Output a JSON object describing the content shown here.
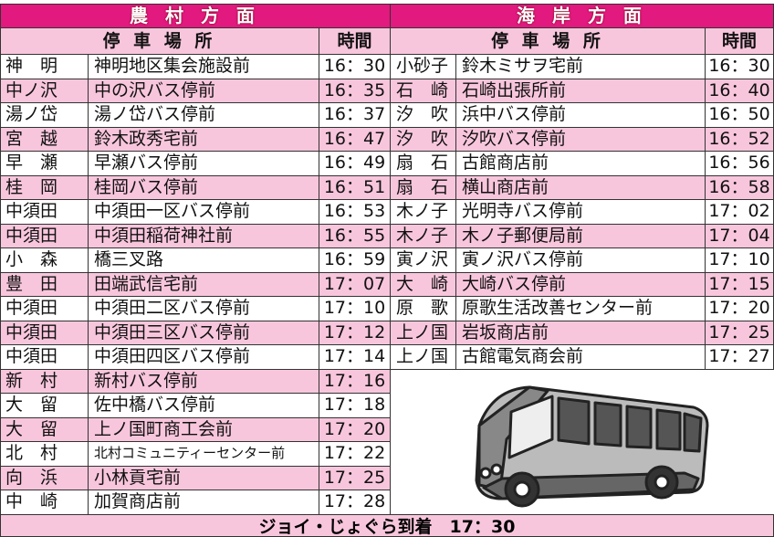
{
  "left": {
    "title": "農 村 方 面",
    "header": {
      "stop": "停 車 場 所",
      "time": "時間"
    },
    "rows": [
      [
        "神　明",
        "神明地区集会施設前",
        "16：30"
      ],
      [
        "中ノ沢",
        "中の沢バス停前",
        "16：35"
      ],
      [
        "湯ノ岱",
        "湯ノ岱バス停前",
        "16：37"
      ],
      [
        "宮　越",
        "鈴木政秀宅前",
        "16：47"
      ],
      [
        "早　瀬",
        "早瀬バス停前",
        "16：49"
      ],
      [
        "桂　岡",
        "桂岡バス停前",
        "16：51"
      ],
      [
        "中須田",
        "中須田一区バス停前",
        "16：53"
      ],
      [
        "中須田",
        "中須田稲荷神社前",
        "16：55"
      ],
      [
        "小　森",
        "橋三叉路",
        "16：59"
      ],
      [
        "豊　田",
        "田端武信宅前",
        "17：07"
      ],
      [
        "中須田",
        "中須田二区バス停前",
        "17：10"
      ],
      [
        "中須田",
        "中須田三区バス停前",
        "17：12"
      ],
      [
        "中須田",
        "中須田四区バス停前",
        "17：14"
      ],
      [
        "新　村",
        "新村バス停前",
        "17：16"
      ],
      [
        "大　留",
        "佐中橋バス停前",
        "17：18"
      ],
      [
        "大　留",
        "上ノ国町商工会前",
        "17：20"
      ],
      [
        "北　村",
        "北村コミュニティーセンター前",
        "17：22"
      ],
      [
        "向　浜",
        "小林貢宅前",
        "17：25"
      ],
      [
        "中　崎",
        "加賀商店前",
        "17：28"
      ]
    ]
  },
  "right": {
    "title": "海 岸 方 面",
    "header": {
      "stop": "停 車 場 所",
      "time": "時間"
    },
    "rows": [
      [
        "小砂子",
        "鈴木ミサヲ宅前",
        "16：30"
      ],
      [
        "石　崎",
        "石崎出張所前",
        "16：40"
      ],
      [
        "汐　吹",
        "浜中バス停前",
        "16：50"
      ],
      [
        "汐　吹",
        "汐吹バス停前",
        "16：52"
      ],
      [
        "扇　石",
        "古館商店前",
        "16：56"
      ],
      [
        "扇　石",
        "横山商店前",
        "16：58"
      ],
      [
        "木ノ子",
        "光明寺バス停前",
        "17：02"
      ],
      [
        "木ノ子",
        "木ノ子郵便局前",
        "17：04"
      ],
      [
        "寅ノ沢",
        "寅ノ沢バス停前",
        "17：10"
      ],
      [
        "大　崎",
        "大崎バス停前",
        "17：15"
      ],
      [
        "原　歌",
        "原歌生活改善センター前",
        "17：20"
      ],
      [
        "上ノ国",
        "岩坂商店前",
        "17：25"
      ],
      [
        "上ノ国",
        "古館電気商会前",
        "17：27"
      ]
    ]
  },
  "footer": "ジョイ・じょぐら到着　17：30"
}
